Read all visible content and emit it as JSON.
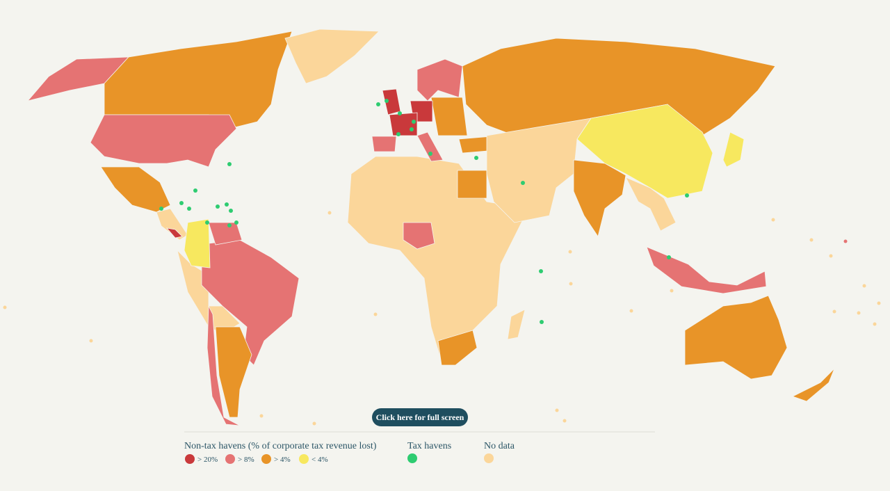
{
  "legend": {
    "non_tax_havens": {
      "title": "Non-tax havens (% of corporate tax revenue lost)",
      "items": [
        {
          "label": "> 20%",
          "color": "#c9393b"
        },
        {
          "label": "> 8%",
          "color": "#e57373"
        },
        {
          "label": "> 4%",
          "color": "#e89428"
        },
        {
          "label": "< 4%",
          "color": "#f7e85f"
        }
      ]
    },
    "tax_havens": {
      "title": "Tax havens",
      "color": "#2ecc71"
    },
    "no_data": {
      "title": "No data",
      "color": "#fbd69a"
    }
  },
  "button": {
    "label": "Click here for full screen"
  }
}
